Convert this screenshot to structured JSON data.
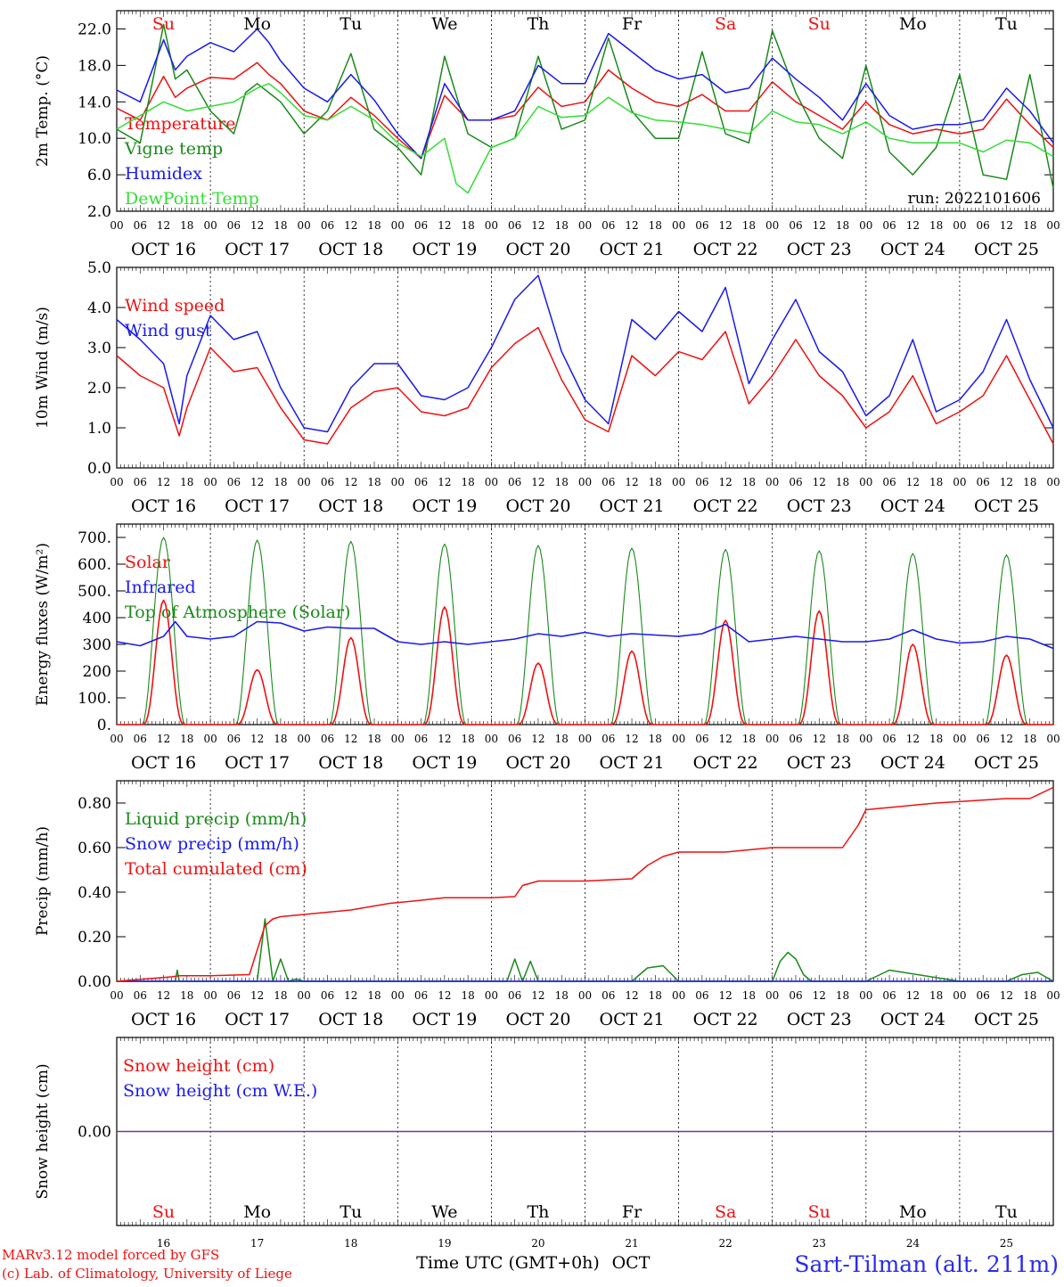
{
  "colors": {
    "red": "#ee1111",
    "green": "#1a8a1a",
    "lightgreen": "#33dd33",
    "blue": "#1a1aee",
    "purple": "#7a3399",
    "black": "#000000"
  },
  "date_labels": [
    "OCT 16",
    "OCT 17",
    "OCT 18",
    "OCT 19",
    "OCT 20",
    "OCT 21",
    "OCT 22",
    "OCT 23",
    "OCT 24",
    "OCT 25"
  ],
  "day_names": [
    "Su",
    "Mo",
    "Tu",
    "We",
    "Th",
    "Fr",
    "Sa",
    "Su",
    "Mo",
    "Tu"
  ],
  "day_name_colors": [
    "#ee1111",
    "#000000",
    "#000000",
    "#000000",
    "#000000",
    "#000000",
    "#ee1111",
    "#ee1111",
    "#000000",
    "#000000"
  ],
  "day_numbers": [
    "16",
    "17",
    "18",
    "19",
    "20",
    "21",
    "22",
    "23",
    "24",
    "25"
  ],
  "hour_labels": [
    "00",
    "06",
    "12",
    "18"
  ],
  "footer": {
    "model_line": "MARv3.12 model forced by GFS",
    "lab_line": "(c) Lab. of Climatology, University of Liege",
    "time_axis": "Time UTC (GMT+0h)",
    "month": "OCT",
    "station": "Sart-Tilman (alt. 211m)"
  },
  "chart_data": [
    {
      "type": "line",
      "ylabel": "2m Temp. (°C)",
      "yticks": [
        "22.0",
        "18.0",
        "14.0",
        "10.0",
        "6.0",
        "2.0"
      ],
      "ylim": [
        2,
        24
      ],
      "run_label": "run: 2022101606",
      "x_unit": "hours since 00 UTC Oct 16",
      "series": [
        {
          "name": "Temperature",
          "color": "#ee1111",
          "x": [
            0,
            6,
            12,
            15,
            18,
            24,
            30,
            36,
            39,
            42,
            48,
            54,
            60,
            66,
            72,
            78,
            84,
            90,
            96,
            102,
            108,
            114,
            120,
            126,
            132,
            138,
            144,
            150,
            156,
            162,
            168,
            174,
            180,
            186,
            192,
            198,
            204,
            210,
            216,
            222,
            228,
            234,
            240
          ],
          "y": [
            13.3,
            12,
            16.8,
            14.5,
            15.5,
            16.7,
            16.5,
            18.3,
            17,
            16,
            13,
            12,
            14.5,
            12.5,
            10,
            7.8,
            14.7,
            12,
            12,
            12.5,
            15.6,
            13.5,
            14,
            17.5,
            15.5,
            14,
            13.5,
            14.8,
            13,
            13,
            16.2,
            14,
            12.5,
            11,
            14,
            11.5,
            10.5,
            11,
            10.5,
            11,
            14.3,
            11.5,
            9
          ]
        },
        {
          "name": "Vigne temp",
          "color": "#1a8a1a",
          "x": [
            0,
            6,
            10,
            12,
            15,
            18,
            24,
            30,
            33,
            36,
            39,
            42,
            48,
            54,
            60,
            66,
            72,
            78,
            84,
            90,
            96,
            102,
            108,
            114,
            120,
            126,
            132,
            138,
            144,
            150,
            156,
            162,
            168,
            174,
            180,
            186,
            192,
            198,
            204,
            210,
            216,
            222,
            228,
            234,
            240
          ],
          "y": [
            11,
            9.5,
            18,
            22.5,
            16.5,
            17.5,
            13,
            10.5,
            15,
            16,
            15,
            14,
            10.5,
            13,
            19.3,
            11,
            9,
            6,
            19,
            10.5,
            9,
            10,
            19,
            11,
            12,
            21,
            13,
            10,
            10,
            19.5,
            10.5,
            9.5,
            21.8,
            15,
            10,
            7.8,
            18,
            8.5,
            6,
            9,
            17,
            6,
            5.5,
            17,
            4.5
          ]
        },
        {
          "name": "Humidex",
          "color": "#1a1aee",
          "x": [
            0,
            6,
            12,
            15,
            18,
            24,
            30,
            36,
            39,
            42,
            48,
            54,
            60,
            66,
            72,
            78,
            84,
            90,
            96,
            102,
            108,
            114,
            120,
            126,
            132,
            138,
            144,
            150,
            156,
            162,
            168,
            174,
            180,
            186,
            192,
            198,
            204,
            210,
            216,
            222,
            228,
            234,
            240
          ],
          "y": [
            15.3,
            14,
            20.8,
            17.5,
            19,
            20.5,
            19.5,
            22,
            20.5,
            18.5,
            15.5,
            14,
            17,
            14.2,
            10.5,
            7.8,
            16,
            12,
            12,
            13,
            18,
            16,
            16,
            21.5,
            19.5,
            17.5,
            16.5,
            17,
            15,
            15.5,
            18.8,
            16.5,
            14.5,
            12,
            16,
            12.5,
            11,
            11.5,
            11.5,
            12,
            15.5,
            13,
            9.5
          ]
        },
        {
          "name": "DewPoint Temp",
          "color": "#33dd33",
          "x": [
            0,
            6,
            12,
            18,
            24,
            30,
            36,
            39,
            42,
            48,
            54,
            60,
            66,
            72,
            78,
            84,
            87,
            90,
            96,
            102,
            108,
            114,
            120,
            126,
            132,
            138,
            144,
            150,
            156,
            162,
            168,
            174,
            180,
            186,
            192,
            198,
            204,
            210,
            216,
            222,
            228,
            234,
            240
          ],
          "y": [
            11,
            12.5,
            14,
            13,
            13.5,
            14,
            15.5,
            16,
            15,
            12.5,
            12,
            13.5,
            12,
            9.5,
            8,
            10,
            5,
            4,
            9,
            10,
            13.5,
            12.3,
            12.5,
            14.5,
            12.8,
            12,
            11.8,
            11.5,
            11,
            10.5,
            13,
            11.8,
            11.5,
            10.5,
            11.8,
            10,
            9.5,
            9.5,
            9.5,
            8.5,
            9.8,
            9.5,
            8
          ]
        }
      ]
    },
    {
      "type": "line",
      "ylabel": "10m Wind (m/s)",
      "yticks": [
        "5.0",
        "4.0",
        "3.0",
        "2.0",
        "1.0",
        "0.0"
      ],
      "ylim": [
        0,
        5
      ],
      "x_unit": "hours since 00 UTC Oct 16",
      "series": [
        {
          "name": "Wind speed",
          "color": "#ee1111",
          "x": [
            0,
            6,
            12,
            16,
            18,
            24,
            30,
            36,
            42,
            48,
            54,
            60,
            66,
            72,
            78,
            84,
            90,
            96,
            102,
            108,
            114,
            120,
            126,
            132,
            138,
            144,
            150,
            156,
            162,
            168,
            174,
            180,
            186,
            192,
            198,
            204,
            210,
            216,
            222,
            228,
            234,
            240
          ],
          "y": [
            2.8,
            2.3,
            2,
            0.8,
            1.5,
            3,
            2.4,
            2.5,
            1.5,
            0.7,
            0.6,
            1.5,
            1.9,
            2.0,
            1.4,
            1.3,
            1.5,
            2.5,
            3.1,
            3.5,
            2.2,
            1.2,
            0.9,
            2.8,
            2.3,
            2.9,
            2.7,
            3.4,
            1.6,
            2.3,
            3.2,
            2.3,
            1.8,
            1.0,
            1.4,
            2.3,
            1.1,
            1.4,
            1.8,
            2.8,
            1.7,
            0.6
          ]
        },
        {
          "name": "Wind gust",
          "color": "#1a1aee",
          "x": [
            0,
            6,
            12,
            16,
            18,
            24,
            30,
            36,
            42,
            48,
            54,
            60,
            66,
            72,
            78,
            84,
            90,
            96,
            102,
            108,
            114,
            120,
            126,
            132,
            138,
            144,
            150,
            156,
            162,
            168,
            174,
            180,
            186,
            192,
            198,
            204,
            210,
            216,
            222,
            228,
            234,
            240
          ],
          "y": [
            3.7,
            3.2,
            2.6,
            1.1,
            2.3,
            3.8,
            3.2,
            3.4,
            2.0,
            1.0,
            0.9,
            2.0,
            2.6,
            2.6,
            1.8,
            1.7,
            2.0,
            3.0,
            4.2,
            4.8,
            2.9,
            1.7,
            1.1,
            3.7,
            3.2,
            3.9,
            3.4,
            4.5,
            2.1,
            3.2,
            4.2,
            2.9,
            2.4,
            1.3,
            1.8,
            3.2,
            1.4,
            1.7,
            2.4,
            3.7,
            2.2,
            1.0
          ]
        }
      ]
    },
    {
      "type": "line",
      "ylabel": "Energy fluxes (W/m²)",
      "yticks": [
        "700.",
        "600.",
        "500.",
        "400",
        "300",
        "200",
        "100.",
        "0."
      ],
      "ylim": [
        0,
        750
      ],
      "x_unit": "hours since 00 UTC Oct 16",
      "solar_peaks": [
        465,
        205,
        325,
        440,
        230,
        275,
        390,
        425,
        300,
        260
      ],
      "toa_peaks": [
        700,
        690,
        685,
        675,
        670,
        660,
        655,
        650,
        640,
        635
      ],
      "series": [
        {
          "name": "Solar",
          "color": "#ee1111",
          "x": [],
          "y": []
        },
        {
          "name": "Infrared",
          "color": "#1a1aee",
          "x": [
            0,
            6,
            12,
            15,
            18,
            24,
            30,
            36,
            42,
            48,
            54,
            60,
            66,
            72,
            78,
            84,
            90,
            96,
            102,
            108,
            114,
            120,
            126,
            132,
            138,
            144,
            150,
            156,
            162,
            168,
            174,
            180,
            186,
            192,
            198,
            204,
            210,
            216,
            222,
            228,
            234,
            240
          ],
          "y": [
            310,
            295,
            330,
            385,
            330,
            320,
            330,
            385,
            380,
            350,
            365,
            360,
            360,
            310,
            300,
            310,
            300,
            310,
            320,
            340,
            330,
            345,
            330,
            340,
            335,
            330,
            340,
            375,
            310,
            320,
            330,
            320,
            310,
            310,
            320,
            355,
            320,
            305,
            310,
            330,
            320,
            285
          ]
        },
        {
          "name": "Top of Atmosphere (Solar)",
          "color": "#1a8a1a",
          "x": [],
          "y": []
        }
      ]
    },
    {
      "type": "line",
      "ylabel": "Precip (mm/h)",
      "yticks": [
        "0.80",
        "0.60",
        "0.40",
        "0.20",
        "0.00"
      ],
      "ylim": [
        0,
        0.9
      ],
      "x_unit": "hours since 00 UTC Oct 16",
      "series": [
        {
          "name": "Liquid precip (mm/h)",
          "color": "#1a8a1a",
          "x": [
            0,
            15,
            15.5,
            16,
            24,
            36,
            38,
            40,
            42,
            44,
            46,
            48,
            84,
            100,
            102,
            104,
            106,
            108,
            120,
            132,
            136,
            140,
            144,
            168,
            170,
            172,
            174,
            176,
            178,
            180,
            192,
            198,
            216,
            228,
            232,
            236,
            238,
            240
          ],
          "y": [
            0,
            0,
            0.05,
            0,
            0,
            0,
            0.28,
            0,
            0.1,
            0,
            0.01,
            0,
            0,
            0,
            0.1,
            0,
            0.09,
            0,
            0,
            0,
            0.06,
            0.07,
            0,
            0,
            0.09,
            0.13,
            0.1,
            0.03,
            0,
            0,
            0,
            0.05,
            0,
            0,
            0.03,
            0.04,
            0.02,
            0
          ]
        },
        {
          "name": "Snow precip (mm/h)",
          "color": "#1a1aee",
          "x": [
            0,
            240
          ],
          "y": [
            0,
            0
          ]
        },
        {
          "name": "Total cumulated (cm)",
          "color": "#ee1111",
          "x": [
            0,
            14,
            16,
            24,
            34,
            36,
            38,
            40,
            42,
            48,
            60,
            70,
            76,
            84,
            96,
            102,
            104,
            108,
            120,
            132,
            136,
            140,
            144,
            156,
            168,
            186,
            190,
            192,
            198,
            210,
            228,
            234,
            240
          ],
          "y": [
            0,
            0.02,
            0.025,
            0.025,
            0.03,
            0.14,
            0.25,
            0.28,
            0.29,
            0.3,
            0.32,
            0.35,
            0.36,
            0.375,
            0.375,
            0.38,
            0.43,
            0.45,
            0.45,
            0.46,
            0.52,
            0.56,
            0.58,
            0.58,
            0.6,
            0.6,
            0.7,
            0.77,
            0.78,
            0.8,
            0.82,
            0.82,
            0.87
          ]
        }
      ]
    },
    {
      "type": "line",
      "ylabel": "Snow height (cm)",
      "yticks": [
        "0.00"
      ],
      "x_unit": "hours since 00 UTC Oct 16",
      "series": [
        {
          "name": "Snow height (cm)",
          "color": "#ee1111",
          "x": [
            0,
            240
          ],
          "y": [
            0,
            0
          ]
        },
        {
          "name": "Snow height (cm W.E.)",
          "color": "#1a1aee",
          "x": [
            0,
            240
          ],
          "y": [
            0,
            0
          ]
        }
      ]
    }
  ]
}
